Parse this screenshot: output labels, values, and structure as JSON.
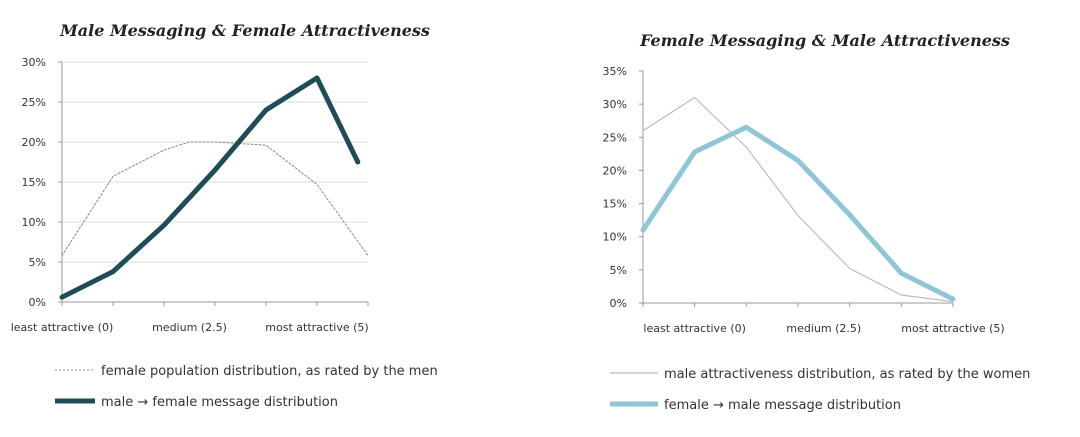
{
  "chart_data": [
    {
      "type": "line",
      "title": "Male Messaging & Female Attractiveness",
      "x": [
        0,
        1,
        2,
        3,
        4,
        5
      ],
      "x_tick_labels": [
        {
          "at": 0,
          "label": "least attractive (0)"
        },
        {
          "at": 2.5,
          "label": "medium (2.5)"
        },
        {
          "at": 5,
          "label": "most attractive (5)"
        }
      ],
      "ylim": [
        0,
        30
      ],
      "y_ticks": [
        0,
        5,
        10,
        15,
        20,
        25,
        30
      ],
      "y_tick_labels": [
        "0%",
        "5%",
        "10%",
        "15%",
        "20%",
        "25%",
        "30%"
      ],
      "grid": true,
      "legend_position": "bottom",
      "series": [
        {
          "name": "female population distribution, as rated by the men",
          "style": "dotted",
          "color": "#888888",
          "points": [
            [
              0,
              5.8
            ],
            [
              1,
              15.7
            ],
            [
              2,
              19.0
            ],
            [
              2.5,
              20.0
            ],
            [
              3,
              20.0
            ],
            [
              4,
              19.6
            ],
            [
              5,
              14.7
            ],
            [
              6,
              5.8
            ]
          ]
        },
        {
          "name": "male → female message distribution",
          "style": "thick",
          "color": "#1f4d55",
          "points": [
            [
              0,
              0.6
            ],
            [
              1,
              3.8
            ],
            [
              2,
              9.6
            ],
            [
              3,
              16.5
            ],
            [
              4,
              24.0
            ],
            [
              5,
              28.0
            ],
            [
              5.8,
              17.5
            ]
          ]
        }
      ]
    },
    {
      "type": "line",
      "title": "Female Messaging & Male Attractiveness",
      "x": [
        0,
        1,
        2,
        3,
        4,
        5
      ],
      "x_tick_labels": [
        {
          "at": 0,
          "label": "least attractive (0)"
        },
        {
          "at": 2.5,
          "label": "medium (2.5)"
        },
        {
          "at": 5,
          "label": "most attractive (5)"
        }
      ],
      "ylim": [
        0,
        35
      ],
      "y_ticks": [
        0,
        5,
        10,
        15,
        20,
        25,
        30,
        35
      ],
      "y_tick_labels": [
        "0%",
        "5%",
        "10%",
        "15%",
        "20%",
        "25%",
        "30%",
        "35%"
      ],
      "grid": false,
      "legend_position": "bottom",
      "series": [
        {
          "name": "male attractiveness distribution, as rated by the women",
          "style": "thin",
          "color": "#bbbbbb",
          "points": [
            [
              -1,
              26.0
            ],
            [
              0,
              31.0
            ],
            [
              1,
              23.5
            ],
            [
              2,
              13.2
            ],
            [
              3,
              5.2
            ],
            [
              4,
              1.2
            ],
            [
              5,
              0.2
            ]
          ]
        },
        {
          "name": "female → male message distribution",
          "style": "thick",
          "color": "#8fc6d6",
          "points": [
            [
              -1,
              11.0
            ],
            [
              0,
              22.8
            ],
            [
              1,
              26.5
            ],
            [
              2,
              21.5
            ],
            [
              3,
              13.3
            ],
            [
              4,
              4.5
            ],
            [
              5,
              0.6
            ]
          ]
        }
      ]
    }
  ]
}
